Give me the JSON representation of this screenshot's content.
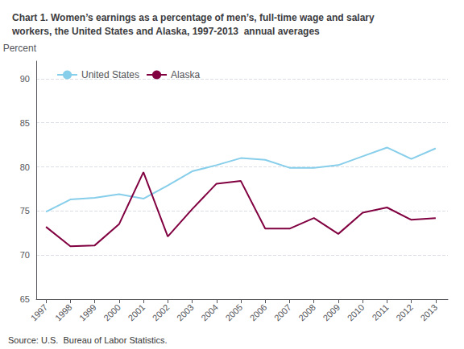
{
  "chart_data": {
    "type": "line",
    "title": "Chart 1. Women’s earnings as a percentage of men’s, full-time wage and salary\nworkers, the United States and Alaska, 1997-2013  annual averages",
    "ylabel": "Percent",
    "annotations": [
      "Source: U.S.  Bureau of Labor Statistics."
    ],
    "x": [
      1997,
      1998,
      1999,
      2000,
      2001,
      2002,
      2003,
      2004,
      2005,
      2006,
      2007,
      2008,
      2009,
      2010,
      2011,
      2012,
      2013
    ],
    "series": [
      {
        "name": "United States",
        "color": "#87CEEB",
        "values": [
          74.9,
          76.3,
          76.5,
          76.9,
          76.4,
          77.9,
          79.5,
          80.2,
          81.0,
          80.8,
          79.9,
          79.9,
          80.2,
          81.2,
          82.2,
          80.9,
          82.1
        ]
      },
      {
        "name": "Alaska",
        "color": "#800040",
        "values": [
          73.2,
          71.0,
          71.1,
          73.5,
          79.4,
          72.1,
          75.2,
          78.1,
          78.4,
          73.0,
          73.0,
          74.2,
          72.4,
          74.8,
          75.4,
          74.0,
          74.2
        ]
      }
    ],
    "xlim": [
      1996.6,
      2013.5
    ],
    "xticks": [
      1997,
      1998,
      1999,
      2000,
      2001,
      2002,
      2003,
      2004,
      2005,
      2006,
      2007,
      2008,
      2009,
      2010,
      2011,
      2012,
      2013
    ],
    "ylim": [
      65,
      92
    ],
    "yticks": [
      65,
      70,
      75,
      80,
      85,
      90
    ],
    "grid": true,
    "legend": "upper left"
  }
}
